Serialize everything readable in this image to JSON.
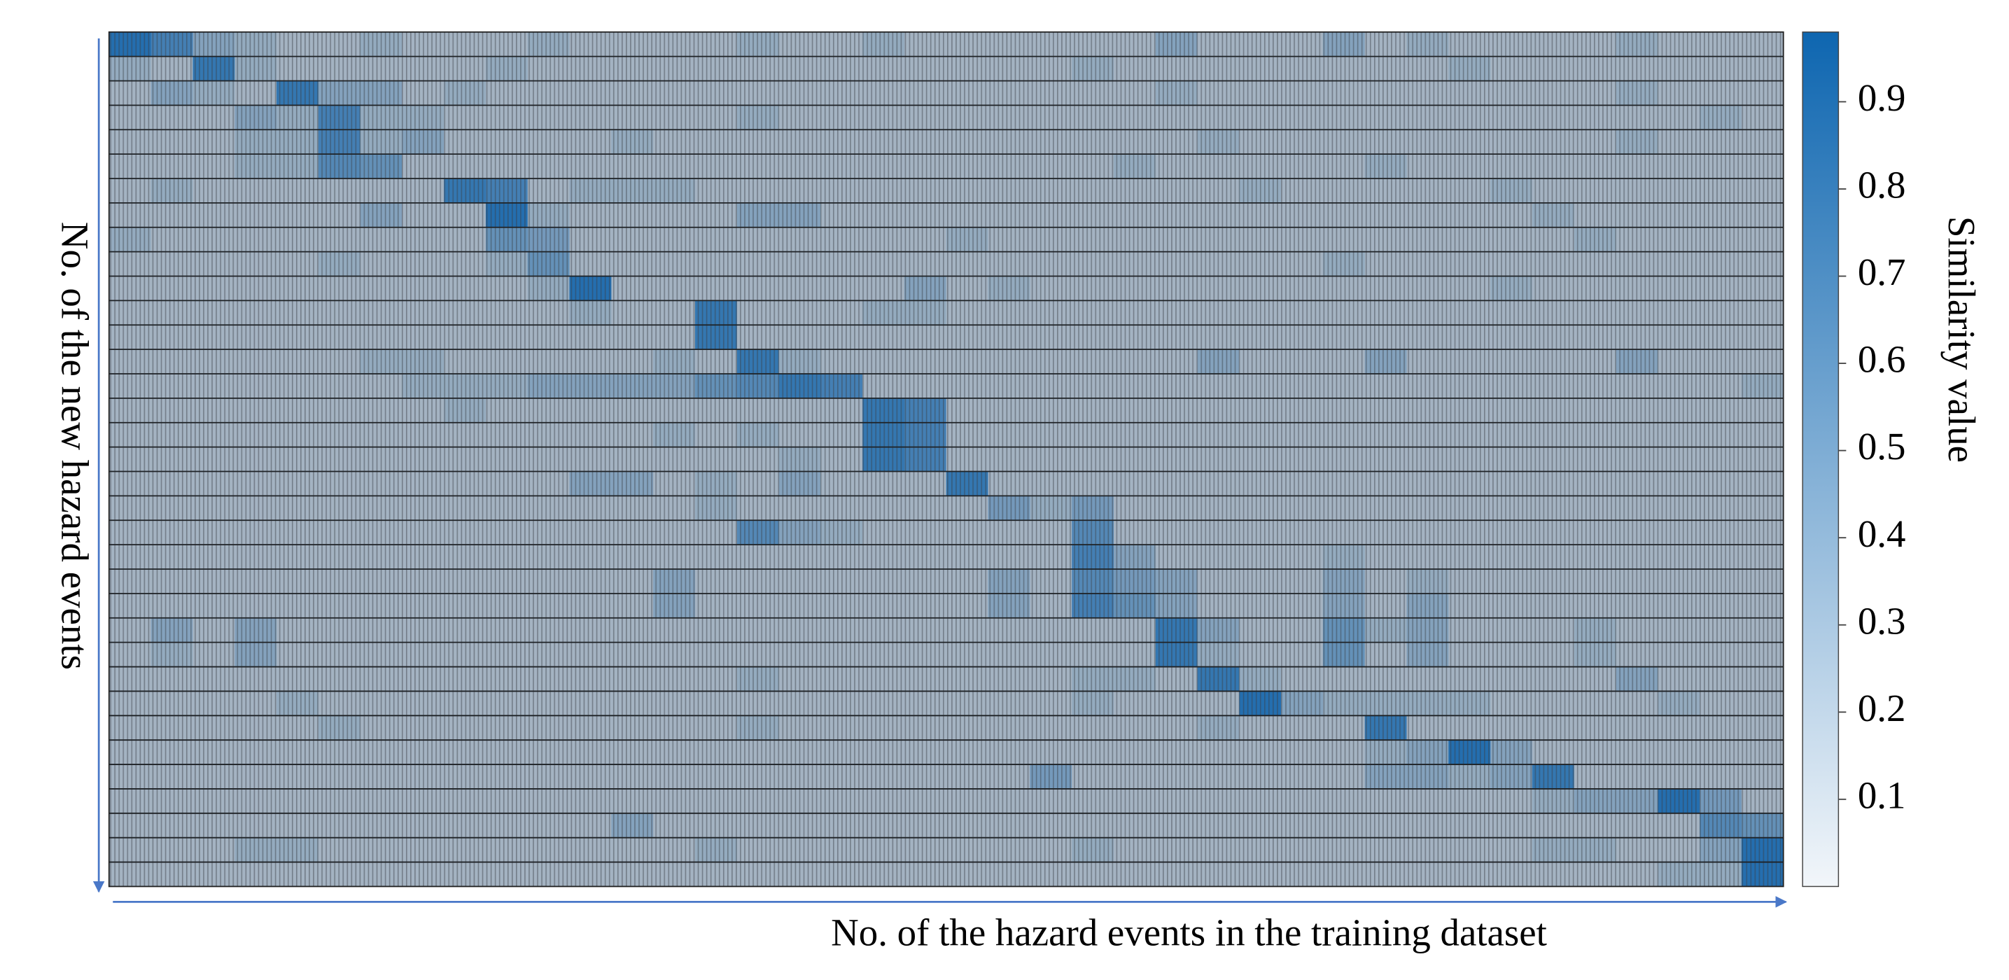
{
  "chart_data": {
    "type": "heatmap",
    "x_label": "No. of the hazard events in the training dataset",
    "y_label": "No. of the new hazard events",
    "colorbar": {
      "label": "Similarity value",
      "lim": [
        0,
        0.98
      ],
      "ticks": [
        0.1,
        0.2,
        0.3,
        0.4,
        0.5,
        0.6,
        0.7,
        0.8,
        0.9
      ],
      "low_color": "#f2f6fa",
      "high_color": "#0e66b0"
    },
    "cell_low_color": "#b4bcc4",
    "cell_high_color": "#1767ad",
    "values": [
      [
        0.9,
        0.7,
        0.3,
        0.2,
        0.1,
        0.1,
        0.2,
        0.1,
        0.1,
        0.1,
        0.2,
        0.1,
        0.1,
        0.1,
        0.1,
        0.2,
        0.1,
        0.1,
        0.2,
        0.1,
        0.1,
        0.1,
        0.1,
        0.1,
        0.1,
        0.3,
        0.1,
        0.1,
        0.1,
        0.3,
        0.1,
        0.2,
        0.1,
        0.1,
        0.1,
        0.1,
        0.2,
        0.1,
        0.1,
        0.1
      ],
      [
        0.2,
        0.1,
        0.8,
        0.2,
        0.1,
        0.1,
        0.1,
        0.1,
        0.1,
        0.2,
        0.1,
        0.1,
        0.1,
        0.1,
        0.1,
        0.1,
        0.1,
        0.1,
        0.1,
        0.1,
        0.1,
        0.1,
        0.1,
        0.2,
        0.1,
        0.1,
        0.1,
        0.1,
        0.1,
        0.1,
        0.1,
        0.1,
        0.2,
        0.1,
        0.1,
        0.1,
        0.1,
        0.1,
        0.1,
        0.1
      ],
      [
        0.1,
        0.3,
        0.2,
        0.1,
        0.8,
        0.3,
        0.3,
        0.1,
        0.2,
        0.1,
        0.1,
        0.1,
        0.1,
        0.1,
        0.1,
        0.1,
        0.1,
        0.1,
        0.1,
        0.1,
        0.1,
        0.1,
        0.1,
        0.1,
        0.1,
        0.2,
        0.1,
        0.1,
        0.1,
        0.1,
        0.1,
        0.1,
        0.1,
        0.1,
        0.1,
        0.1,
        0.2,
        0.1,
        0.1,
        0.1
      ],
      [
        0.1,
        0.1,
        0.1,
        0.3,
        0.2,
        0.7,
        0.2,
        0.2,
        0.1,
        0.1,
        0.1,
        0.1,
        0.1,
        0.1,
        0.1,
        0.2,
        0.1,
        0.1,
        0.1,
        0.1,
        0.1,
        0.1,
        0.1,
        0.1,
        0.1,
        0.1,
        0.1,
        0.1,
        0.1,
        0.1,
        0.1,
        0.1,
        0.1,
        0.1,
        0.1,
        0.1,
        0.1,
        0.1,
        0.2,
        0.1
      ],
      [
        0.1,
        0.1,
        0.1,
        0.2,
        0.2,
        0.7,
        0.2,
        0.3,
        0.1,
        0.1,
        0.1,
        0.1,
        0.2,
        0.1,
        0.1,
        0.1,
        0.1,
        0.1,
        0.1,
        0.1,
        0.1,
        0.1,
        0.1,
        0.1,
        0.1,
        0.1,
        0.2,
        0.1,
        0.1,
        0.1,
        0.1,
        0.1,
        0.1,
        0.1,
        0.1,
        0.1,
        0.2,
        0.1,
        0.1,
        0.1
      ],
      [
        0.1,
        0.1,
        0.1,
        0.2,
        0.2,
        0.6,
        0.5,
        0.1,
        0.1,
        0.1,
        0.1,
        0.1,
        0.1,
        0.1,
        0.1,
        0.1,
        0.1,
        0.1,
        0.1,
        0.1,
        0.1,
        0.1,
        0.1,
        0.1,
        0.2,
        0.1,
        0.1,
        0.1,
        0.1,
        0.1,
        0.2,
        0.1,
        0.1,
        0.1,
        0.1,
        0.1,
        0.1,
        0.1,
        0.1,
        0.1
      ],
      [
        0.1,
        0.2,
        0.1,
        0.1,
        0.1,
        0.1,
        0.1,
        0.1,
        0.8,
        0.7,
        0.1,
        0.2,
        0.2,
        0.2,
        0.1,
        0.1,
        0.1,
        0.1,
        0.1,
        0.1,
        0.1,
        0.1,
        0.1,
        0.1,
        0.1,
        0.1,
        0.1,
        0.2,
        0.1,
        0.1,
        0.1,
        0.1,
        0.1,
        0.2,
        0.1,
        0.1,
        0.1,
        0.1,
        0.1,
        0.1
      ],
      [
        0.1,
        0.1,
        0.1,
        0.1,
        0.1,
        0.1,
        0.3,
        0.1,
        0.1,
        0.9,
        0.2,
        0.1,
        0.1,
        0.1,
        0.1,
        0.3,
        0.3,
        0.1,
        0.1,
        0.1,
        0.1,
        0.1,
        0.1,
        0.1,
        0.1,
        0.1,
        0.1,
        0.1,
        0.1,
        0.1,
        0.1,
        0.1,
        0.1,
        0.1,
        0.2,
        0.1,
        0.1,
        0.1,
        0.1,
        0.1
      ],
      [
        0.2,
        0.1,
        0.1,
        0.1,
        0.1,
        0.1,
        0.1,
        0.1,
        0.1,
        0.5,
        0.4,
        0.1,
        0.1,
        0.1,
        0.1,
        0.1,
        0.1,
        0.1,
        0.1,
        0.1,
        0.2,
        0.1,
        0.1,
        0.1,
        0.1,
        0.1,
        0.1,
        0.1,
        0.1,
        0.1,
        0.1,
        0.1,
        0.1,
        0.1,
        0.1,
        0.2,
        0.1,
        0.1,
        0.1,
        0.1
      ],
      [
        0.1,
        0.1,
        0.1,
        0.1,
        0.1,
        0.2,
        0.1,
        0.1,
        0.1,
        0.2,
        0.5,
        0.1,
        0.1,
        0.1,
        0.1,
        0.1,
        0.1,
        0.1,
        0.1,
        0.1,
        0.1,
        0.1,
        0.1,
        0.1,
        0.1,
        0.1,
        0.1,
        0.1,
        0.1,
        0.2,
        0.1,
        0.1,
        0.1,
        0.1,
        0.1,
        0.1,
        0.1,
        0.1,
        0.1,
        0.1
      ],
      [
        0.1,
        0.1,
        0.1,
        0.1,
        0.1,
        0.1,
        0.1,
        0.1,
        0.1,
        0.1,
        0.2,
        0.9,
        0.1,
        0.1,
        0.1,
        0.1,
        0.1,
        0.1,
        0.1,
        0.3,
        0.1,
        0.2,
        0.1,
        0.1,
        0.1,
        0.1,
        0.1,
        0.1,
        0.1,
        0.1,
        0.1,
        0.1,
        0.1,
        0.2,
        0.1,
        0.1,
        0.1,
        0.1,
        0.1,
        0.1
      ],
      [
        0.1,
        0.1,
        0.1,
        0.1,
        0.1,
        0.1,
        0.1,
        0.1,
        0.1,
        0.1,
        0.1,
        0.2,
        0.1,
        0.1,
        0.8,
        0.1,
        0.1,
        0.1,
        0.2,
        0.2,
        0.1,
        0.1,
        0.1,
        0.1,
        0.1,
        0.1,
        0.1,
        0.1,
        0.1,
        0.1,
        0.1,
        0.1,
        0.1,
        0.1,
        0.1,
        0.1,
        0.1,
        0.1,
        0.1,
        0.1
      ],
      [
        0.1,
        0.1,
        0.1,
        0.1,
        0.1,
        0.1,
        0.1,
        0.1,
        0.1,
        0.1,
        0.1,
        0.1,
        0.1,
        0.1,
        0.8,
        0.1,
        0.1,
        0.1,
        0.1,
        0.1,
        0.1,
        0.1,
        0.1,
        0.1,
        0.1,
        0.1,
        0.1,
        0.1,
        0.1,
        0.1,
        0.1,
        0.1,
        0.1,
        0.1,
        0.1,
        0.1,
        0.1,
        0.1,
        0.1,
        0.1
      ],
      [
        0.1,
        0.1,
        0.1,
        0.1,
        0.1,
        0.1,
        0.2,
        0.2,
        0.1,
        0.1,
        0.1,
        0.1,
        0.1,
        0.2,
        0.1,
        0.8,
        0.2,
        0.1,
        0.1,
        0.1,
        0.1,
        0.1,
        0.1,
        0.1,
        0.1,
        0.1,
        0.3,
        0.1,
        0.1,
        0.1,
        0.3,
        0.1,
        0.1,
        0.1,
        0.1,
        0.1,
        0.3,
        0.1,
        0.1,
        0.1
      ],
      [
        0.1,
        0.1,
        0.1,
        0.1,
        0.1,
        0.1,
        0.1,
        0.2,
        0.2,
        0.2,
        0.3,
        0.3,
        0.3,
        0.3,
        0.5,
        0.6,
        0.8,
        0.7,
        0.1,
        0.1,
        0.1,
        0.1,
        0.1,
        0.1,
        0.1,
        0.1,
        0.1,
        0.1,
        0.1,
        0.1,
        0.1,
        0.1,
        0.1,
        0.1,
        0.1,
        0.1,
        0.1,
        0.1,
        0.1,
        0.2
      ],
      [
        0.1,
        0.1,
        0.1,
        0.1,
        0.1,
        0.1,
        0.1,
        0.1,
        0.2,
        0.1,
        0.1,
        0.1,
        0.1,
        0.1,
        0.1,
        0.1,
        0.1,
        0.1,
        0.8,
        0.7,
        0.1,
        0.1,
        0.1,
        0.1,
        0.1,
        0.1,
        0.1,
        0.1,
        0.1,
        0.1,
        0.1,
        0.1,
        0.1,
        0.1,
        0.1,
        0.1,
        0.1,
        0.1,
        0.1,
        0.1
      ],
      [
        0.1,
        0.1,
        0.1,
        0.1,
        0.1,
        0.1,
        0.1,
        0.1,
        0.1,
        0.1,
        0.1,
        0.1,
        0.1,
        0.2,
        0.1,
        0.2,
        0.1,
        0.1,
        0.8,
        0.7,
        0.1,
        0.1,
        0.1,
        0.1,
        0.1,
        0.1,
        0.1,
        0.1,
        0.1,
        0.1,
        0.1,
        0.1,
        0.1,
        0.1,
        0.1,
        0.1,
        0.1,
        0.1,
        0.1,
        0.1
      ],
      [
        0.1,
        0.1,
        0.1,
        0.1,
        0.1,
        0.1,
        0.1,
        0.1,
        0.1,
        0.1,
        0.1,
        0.1,
        0.1,
        0.1,
        0.1,
        0.1,
        0.2,
        0.1,
        0.8,
        0.7,
        0.1,
        0.1,
        0.1,
        0.1,
        0.1,
        0.1,
        0.1,
        0.1,
        0.1,
        0.1,
        0.1,
        0.1,
        0.1,
        0.1,
        0.1,
        0.1,
        0.1,
        0.1,
        0.1,
        0.1
      ],
      [
        0.1,
        0.1,
        0.1,
        0.1,
        0.1,
        0.1,
        0.1,
        0.1,
        0.1,
        0.1,
        0.1,
        0.3,
        0.3,
        0.1,
        0.2,
        0.1,
        0.3,
        0.1,
        0.1,
        0.1,
        0.8,
        0.1,
        0.1,
        0.1,
        0.1,
        0.1,
        0.1,
        0.1,
        0.1,
        0.1,
        0.1,
        0.1,
        0.1,
        0.1,
        0.1,
        0.1,
        0.1,
        0.1,
        0.1,
        0.1
      ],
      [
        0.1,
        0.1,
        0.1,
        0.1,
        0.1,
        0.1,
        0.1,
        0.1,
        0.1,
        0.1,
        0.1,
        0.1,
        0.1,
        0.1,
        0.2,
        0.1,
        0.1,
        0.1,
        0.1,
        0.1,
        0.1,
        0.4,
        0.2,
        0.4,
        0.1,
        0.1,
        0.1,
        0.1,
        0.1,
        0.1,
        0.1,
        0.1,
        0.1,
        0.1,
        0.1,
        0.1,
        0.1,
        0.1,
        0.1,
        0.1
      ],
      [
        0.1,
        0.1,
        0.1,
        0.1,
        0.1,
        0.1,
        0.1,
        0.1,
        0.1,
        0.1,
        0.1,
        0.1,
        0.1,
        0.1,
        0.1,
        0.6,
        0.3,
        0.2,
        0.1,
        0.1,
        0.1,
        0.1,
        0.1,
        0.6,
        0.1,
        0.1,
        0.1,
        0.1,
        0.1,
        0.1,
        0.1,
        0.1,
        0.1,
        0.1,
        0.1,
        0.1,
        0.1,
        0.1,
        0.1,
        0.1
      ],
      [
        0.1,
        0.1,
        0.1,
        0.1,
        0.1,
        0.1,
        0.1,
        0.1,
        0.1,
        0.1,
        0.1,
        0.1,
        0.1,
        0.1,
        0.1,
        0.1,
        0.1,
        0.1,
        0.1,
        0.1,
        0.1,
        0.1,
        0.1,
        0.7,
        0.3,
        0.1,
        0.1,
        0.1,
        0.1,
        0.2,
        0.1,
        0.1,
        0.1,
        0.1,
        0.1,
        0.1,
        0.1,
        0.1,
        0.1,
        0.1
      ],
      [
        0.1,
        0.1,
        0.1,
        0.1,
        0.1,
        0.1,
        0.1,
        0.1,
        0.1,
        0.1,
        0.1,
        0.1,
        0.1,
        0.3,
        0.1,
        0.1,
        0.1,
        0.1,
        0.1,
        0.1,
        0.1,
        0.3,
        0.1,
        0.6,
        0.4,
        0.3,
        0.1,
        0.1,
        0.1,
        0.3,
        0.1,
        0.2,
        0.1,
        0.1,
        0.1,
        0.1,
        0.1,
        0.1,
        0.1,
        0.1
      ],
      [
        0.1,
        0.1,
        0.1,
        0.1,
        0.1,
        0.1,
        0.1,
        0.1,
        0.1,
        0.1,
        0.1,
        0.1,
        0.1,
        0.3,
        0.1,
        0.1,
        0.1,
        0.1,
        0.1,
        0.1,
        0.1,
        0.3,
        0.1,
        0.7,
        0.5,
        0.3,
        0.1,
        0.1,
        0.1,
        0.3,
        0.1,
        0.3,
        0.1,
        0.1,
        0.1,
        0.1,
        0.1,
        0.1,
        0.1,
        0.1
      ],
      [
        0.1,
        0.3,
        0.1,
        0.3,
        0.1,
        0.1,
        0.1,
        0.1,
        0.1,
        0.1,
        0.1,
        0.1,
        0.1,
        0.1,
        0.1,
        0.1,
        0.1,
        0.1,
        0.1,
        0.1,
        0.1,
        0.1,
        0.1,
        0.1,
        0.1,
        0.8,
        0.3,
        0.1,
        0.1,
        0.5,
        0.2,
        0.3,
        0.1,
        0.1,
        0.1,
        0.2,
        0.1,
        0.1,
        0.1,
        0.1
      ],
      [
        0.1,
        0.2,
        0.1,
        0.3,
        0.1,
        0.1,
        0.1,
        0.1,
        0.1,
        0.1,
        0.1,
        0.1,
        0.1,
        0.1,
        0.1,
        0.1,
        0.1,
        0.1,
        0.1,
        0.1,
        0.1,
        0.1,
        0.1,
        0.1,
        0.1,
        0.8,
        0.2,
        0.1,
        0.1,
        0.5,
        0.1,
        0.3,
        0.1,
        0.1,
        0.1,
        0.2,
        0.1,
        0.1,
        0.1,
        0.1
      ],
      [
        0.1,
        0.1,
        0.1,
        0.1,
        0.1,
        0.1,
        0.1,
        0.1,
        0.1,
        0.1,
        0.1,
        0.1,
        0.1,
        0.1,
        0.1,
        0.2,
        0.1,
        0.1,
        0.1,
        0.1,
        0.1,
        0.1,
        0.1,
        0.2,
        0.2,
        0.1,
        0.8,
        0.2,
        0.1,
        0.1,
        0.1,
        0.1,
        0.1,
        0.1,
        0.1,
        0.1,
        0.3,
        0.1,
        0.1,
        0.1
      ],
      [
        0.1,
        0.1,
        0.1,
        0.1,
        0.2,
        0.1,
        0.1,
        0.1,
        0.1,
        0.1,
        0.1,
        0.1,
        0.1,
        0.1,
        0.1,
        0.1,
        0.1,
        0.1,
        0.1,
        0.1,
        0.1,
        0.1,
        0.1,
        0.2,
        0.1,
        0.1,
        0.1,
        0.9,
        0.3,
        0.2,
        0.2,
        0.2,
        0.2,
        0.1,
        0.1,
        0.1,
        0.1,
        0.2,
        0.1,
        0.1
      ],
      [
        0.1,
        0.1,
        0.1,
        0.1,
        0.1,
        0.2,
        0.1,
        0.1,
        0.1,
        0.1,
        0.1,
        0.1,
        0.1,
        0.1,
        0.1,
        0.2,
        0.1,
        0.1,
        0.1,
        0.1,
        0.1,
        0.1,
        0.1,
        0.1,
        0.1,
        0.1,
        0.2,
        0.1,
        0.1,
        0.1,
        0.8,
        0.1,
        0.1,
        0.1,
        0.1,
        0.1,
        0.1,
        0.1,
        0.1,
        0.1
      ],
      [
        0.1,
        0.1,
        0.1,
        0.1,
        0.1,
        0.1,
        0.1,
        0.1,
        0.1,
        0.1,
        0.1,
        0.1,
        0.1,
        0.1,
        0.1,
        0.1,
        0.1,
        0.1,
        0.1,
        0.1,
        0.1,
        0.1,
        0.1,
        0.1,
        0.1,
        0.1,
        0.1,
        0.1,
        0.1,
        0.1,
        0.2,
        0.3,
        0.9,
        0.3,
        0.1,
        0.1,
        0.1,
        0.1,
        0.1,
        0.1
      ],
      [
        0.1,
        0.1,
        0.1,
        0.1,
        0.1,
        0.1,
        0.1,
        0.1,
        0.1,
        0.1,
        0.1,
        0.1,
        0.1,
        0.1,
        0.1,
        0.1,
        0.1,
        0.1,
        0.1,
        0.1,
        0.1,
        0.1,
        0.4,
        0.1,
        0.1,
        0.1,
        0.1,
        0.1,
        0.1,
        0.1,
        0.3,
        0.3,
        0.2,
        0.3,
        0.8,
        0.1,
        0.1,
        0.1,
        0.1,
        0.1
      ],
      [
        0.1,
        0.1,
        0.1,
        0.1,
        0.1,
        0.1,
        0.1,
        0.1,
        0.1,
        0.1,
        0.1,
        0.1,
        0.1,
        0.1,
        0.1,
        0.1,
        0.1,
        0.1,
        0.1,
        0.1,
        0.1,
        0.1,
        0.1,
        0.1,
        0.1,
        0.1,
        0.1,
        0.1,
        0.1,
        0.1,
        0.1,
        0.1,
        0.1,
        0.1,
        0.2,
        0.3,
        0.3,
        0.9,
        0.4,
        0.1
      ],
      [
        0.1,
        0.1,
        0.1,
        0.1,
        0.1,
        0.1,
        0.1,
        0.1,
        0.1,
        0.1,
        0.1,
        0.1,
        0.3,
        0.1,
        0.1,
        0.1,
        0.1,
        0.1,
        0.1,
        0.1,
        0.1,
        0.1,
        0.1,
        0.1,
        0.1,
        0.1,
        0.1,
        0.1,
        0.1,
        0.1,
        0.1,
        0.1,
        0.1,
        0.1,
        0.1,
        0.1,
        0.1,
        0.1,
        0.6,
        0.5
      ],
      [
        0.1,
        0.1,
        0.1,
        0.2,
        0.2,
        0.1,
        0.1,
        0.1,
        0.1,
        0.1,
        0.1,
        0.1,
        0.1,
        0.1,
        0.2,
        0.1,
        0.1,
        0.1,
        0.1,
        0.1,
        0.1,
        0.1,
        0.1,
        0.2,
        0.1,
        0.1,
        0.1,
        0.1,
        0.1,
        0.1,
        0.1,
        0.1,
        0.1,
        0.1,
        0.2,
        0.2,
        0.1,
        0.1,
        0.3,
        0.9
      ],
      [
        0.1,
        0.1,
        0.1,
        0.1,
        0.1,
        0.1,
        0.1,
        0.1,
        0.1,
        0.1,
        0.1,
        0.1,
        0.1,
        0.1,
        0.1,
        0.1,
        0.1,
        0.1,
        0.1,
        0.1,
        0.1,
        0.1,
        0.1,
        0.1,
        0.1,
        0.1,
        0.1,
        0.1,
        0.1,
        0.1,
        0.1,
        0.1,
        0.1,
        0.1,
        0.1,
        0.1,
        0.1,
        0.2,
        0.2,
        0.9
      ]
    ]
  }
}
